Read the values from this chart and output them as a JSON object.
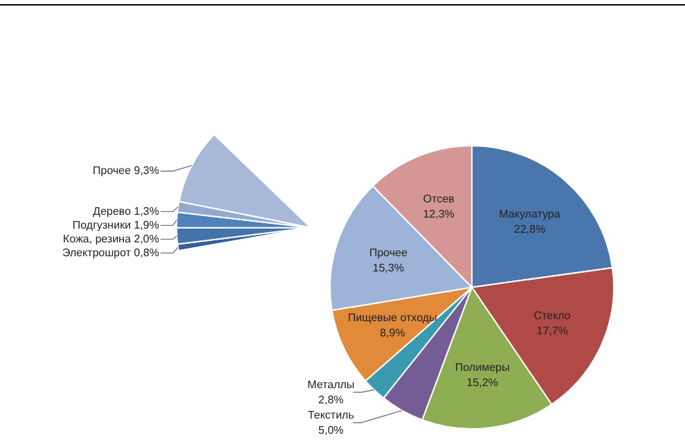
{
  "chart_data": [
    {
      "type": "pie",
      "categories": [
        "Макулатура",
        "Стекло",
        "Полимеры",
        "Текстиль",
        "Металлы",
        "Пищевые отходы",
        "Прочее",
        "Отсев"
      ],
      "values": [
        22.8,
        17.7,
        15.2,
        5.0,
        2.8,
        8.9,
        15.3,
        12.3
      ],
      "colors": [
        "#4a76ae",
        "#b04a47",
        "#8fad52",
        "#745c95",
        "#3a9bb0",
        "#e08a3a",
        "#9eb3d8",
        "#d49795"
      ],
      "value_labels": [
        "22,8%",
        "17,7%",
        "15,2%",
        "5,0%",
        "2,8%",
        "8,9%",
        "15,3%",
        "12,3%"
      ]
    },
    {
      "type": "pie",
      "categories": [
        "Электрошрот",
        "Кожа, резина",
        "Подгузники",
        "Дерево",
        "Прочее"
      ],
      "values": [
        0.8,
        2.0,
        1.9,
        1.3,
        9.3
      ],
      "colors": [
        "#35609a",
        "#4373ab",
        "#4f81bd",
        "#95a9d0",
        "#a8b8d8"
      ],
      "value_labels": [
        "0,8%",
        "2,0%",
        "1,9%",
        "1,3%",
        "9,3%"
      ]
    }
  ]
}
